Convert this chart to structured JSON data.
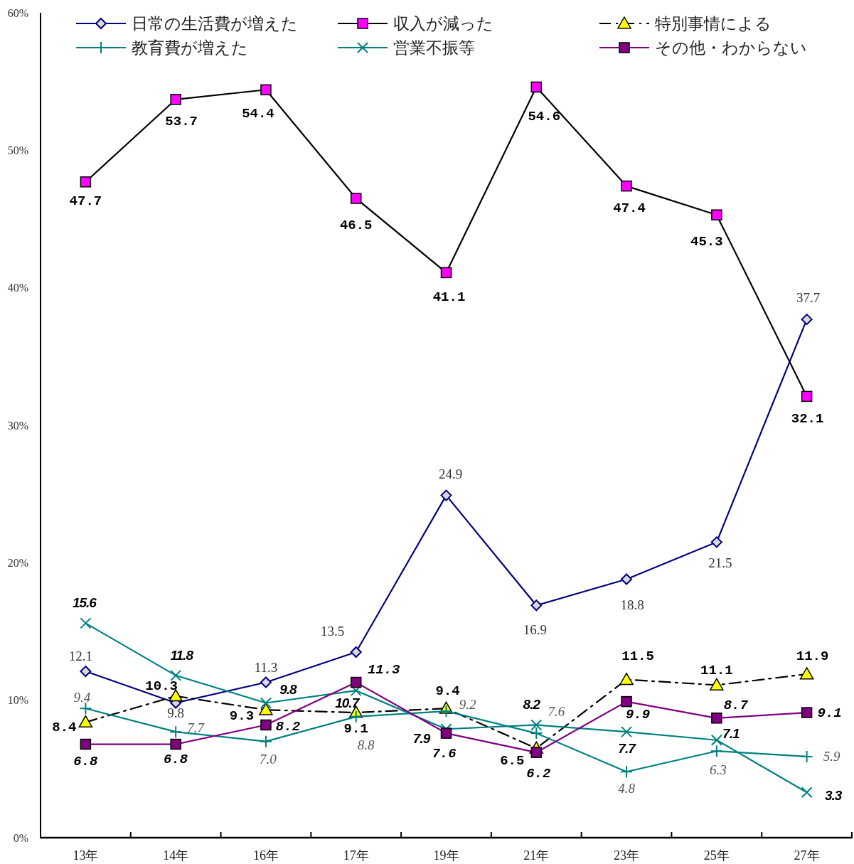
{
  "chart_data": {
    "type": "line",
    "categories": [
      "13年",
      "14年",
      "16年",
      "17年",
      "19年",
      "21年",
      "23年",
      "25年",
      "27年"
    ],
    "ylim": [
      0,
      60
    ],
    "yticks": [
      {
        "value": 0,
        "label": "0%"
      },
      {
        "value": 10,
        "label": "10%"
      },
      {
        "value": 20,
        "label": "20%"
      },
      {
        "value": 30,
        "label": "30%"
      },
      {
        "value": 40,
        "label": "40%"
      },
      {
        "value": 50,
        "label": "50%"
      },
      {
        "value": 60,
        "label": "60%"
      }
    ],
    "grid": false,
    "legend": "top",
    "series": [
      {
        "name": "日常の生活費が増えた",
        "color": "#000080",
        "marker": "diamond",
        "colors": [
          "#d9d9d9",
          "#d9d9d9",
          "#d9d9d9",
          "#d9d9d9",
          "#d9d9d9",
          "#d9d9d9",
          "#d9d9d9",
          "#d9d9d9",
          "#d9d9d9"
        ],
        "values": [
          12.1,
          9.8,
          11.3,
          13.5,
          24.9,
          16.9,
          18.8,
          21.5,
          37.7
        ],
        "value_labels": [
          "12.1",
          "9.8",
          "11.3",
          "13.5",
          "24.9",
          "16.9",
          "18.8",
          "21.5",
          "37.7"
        ]
      },
      {
        "name": "収入が減った",
        "color": "#000000",
        "marker": "square",
        "colors": [
          "#ff00ff",
          "#ff00ff",
          "#ff00ff",
          "#ff00ff",
          "#ff00ff",
          "#ff00ff",
          "#ff00ff",
          "#ff00ff",
          "#ff00ff"
        ],
        "values": [
          47.7,
          53.7,
          54.4,
          46.5,
          41.1,
          54.6,
          47.4,
          45.3,
          32.1
        ],
        "value_labels": [
          "47.7",
          "53.7",
          "54.4",
          "46.5",
          "41.1",
          "54.6",
          "47.4",
          "45.3",
          "32.1"
        ]
      },
      {
        "name": "特別事情による",
        "color": "#000000",
        "marker": "triangle",
        "line_style": "dashdot",
        "colors": [
          "#ffff00",
          "#ffff00",
          "#ffff00",
          "#ffff00",
          "#ffff00",
          "#ffff00",
          "#ffff00",
          "#ffff00",
          "#ffff00"
        ],
        "values": [
          8.4,
          10.3,
          9.3,
          9.1,
          9.4,
          6.5,
          11.5,
          11.1,
          11.9
        ],
        "value_labels": [
          "8.4",
          "10.3",
          "9.3",
          "9.1",
          "9.4",
          "6.5",
          "11.5",
          "11.1",
          "11.9"
        ]
      },
      {
        "name": "教育費が増えた",
        "color": "#008080",
        "marker": "cross",
        "values": [
          9.4,
          7.7,
          7.0,
          8.8,
          9.2,
          7.6,
          4.8,
          6.3,
          5.9
        ],
        "value_labels": [
          "9.4",
          "7.7",
          "7.0",
          "8.8",
          "9.2",
          "7.6",
          "4.8",
          "6.3",
          "5.9"
        ]
      },
      {
        "name": "営業不振等",
        "color": "#008080",
        "marker": "x",
        "values": [
          15.6,
          11.8,
          9.8,
          10.7,
          7.9,
          8.2,
          7.7,
          7.1,
          3.3
        ],
        "value_labels": [
          "15.6",
          "11.8",
          "9.8",
          "10.7",
          "7.9",
          "8.2",
          "7.7",
          "7.1",
          "3.3"
        ]
      },
      {
        "name": "その他・わからない",
        "color": "#800080",
        "marker": "square",
        "colors": [
          "#800080",
          "#800080",
          "#800080",
          "#800080",
          "#800080",
          "#800080",
          "#800080",
          "#800080",
          "#800080"
        ],
        "values": [
          6.8,
          6.8,
          8.2,
          11.3,
          7.6,
          6.2,
          9.9,
          8.7,
          9.1
        ],
        "value_labels": [
          "6.8",
          "6.8",
          "8.2",
          "11.3",
          "7.6",
          "6.2",
          "9.9",
          "8.7",
          "9.1"
        ]
      }
    ]
  }
}
